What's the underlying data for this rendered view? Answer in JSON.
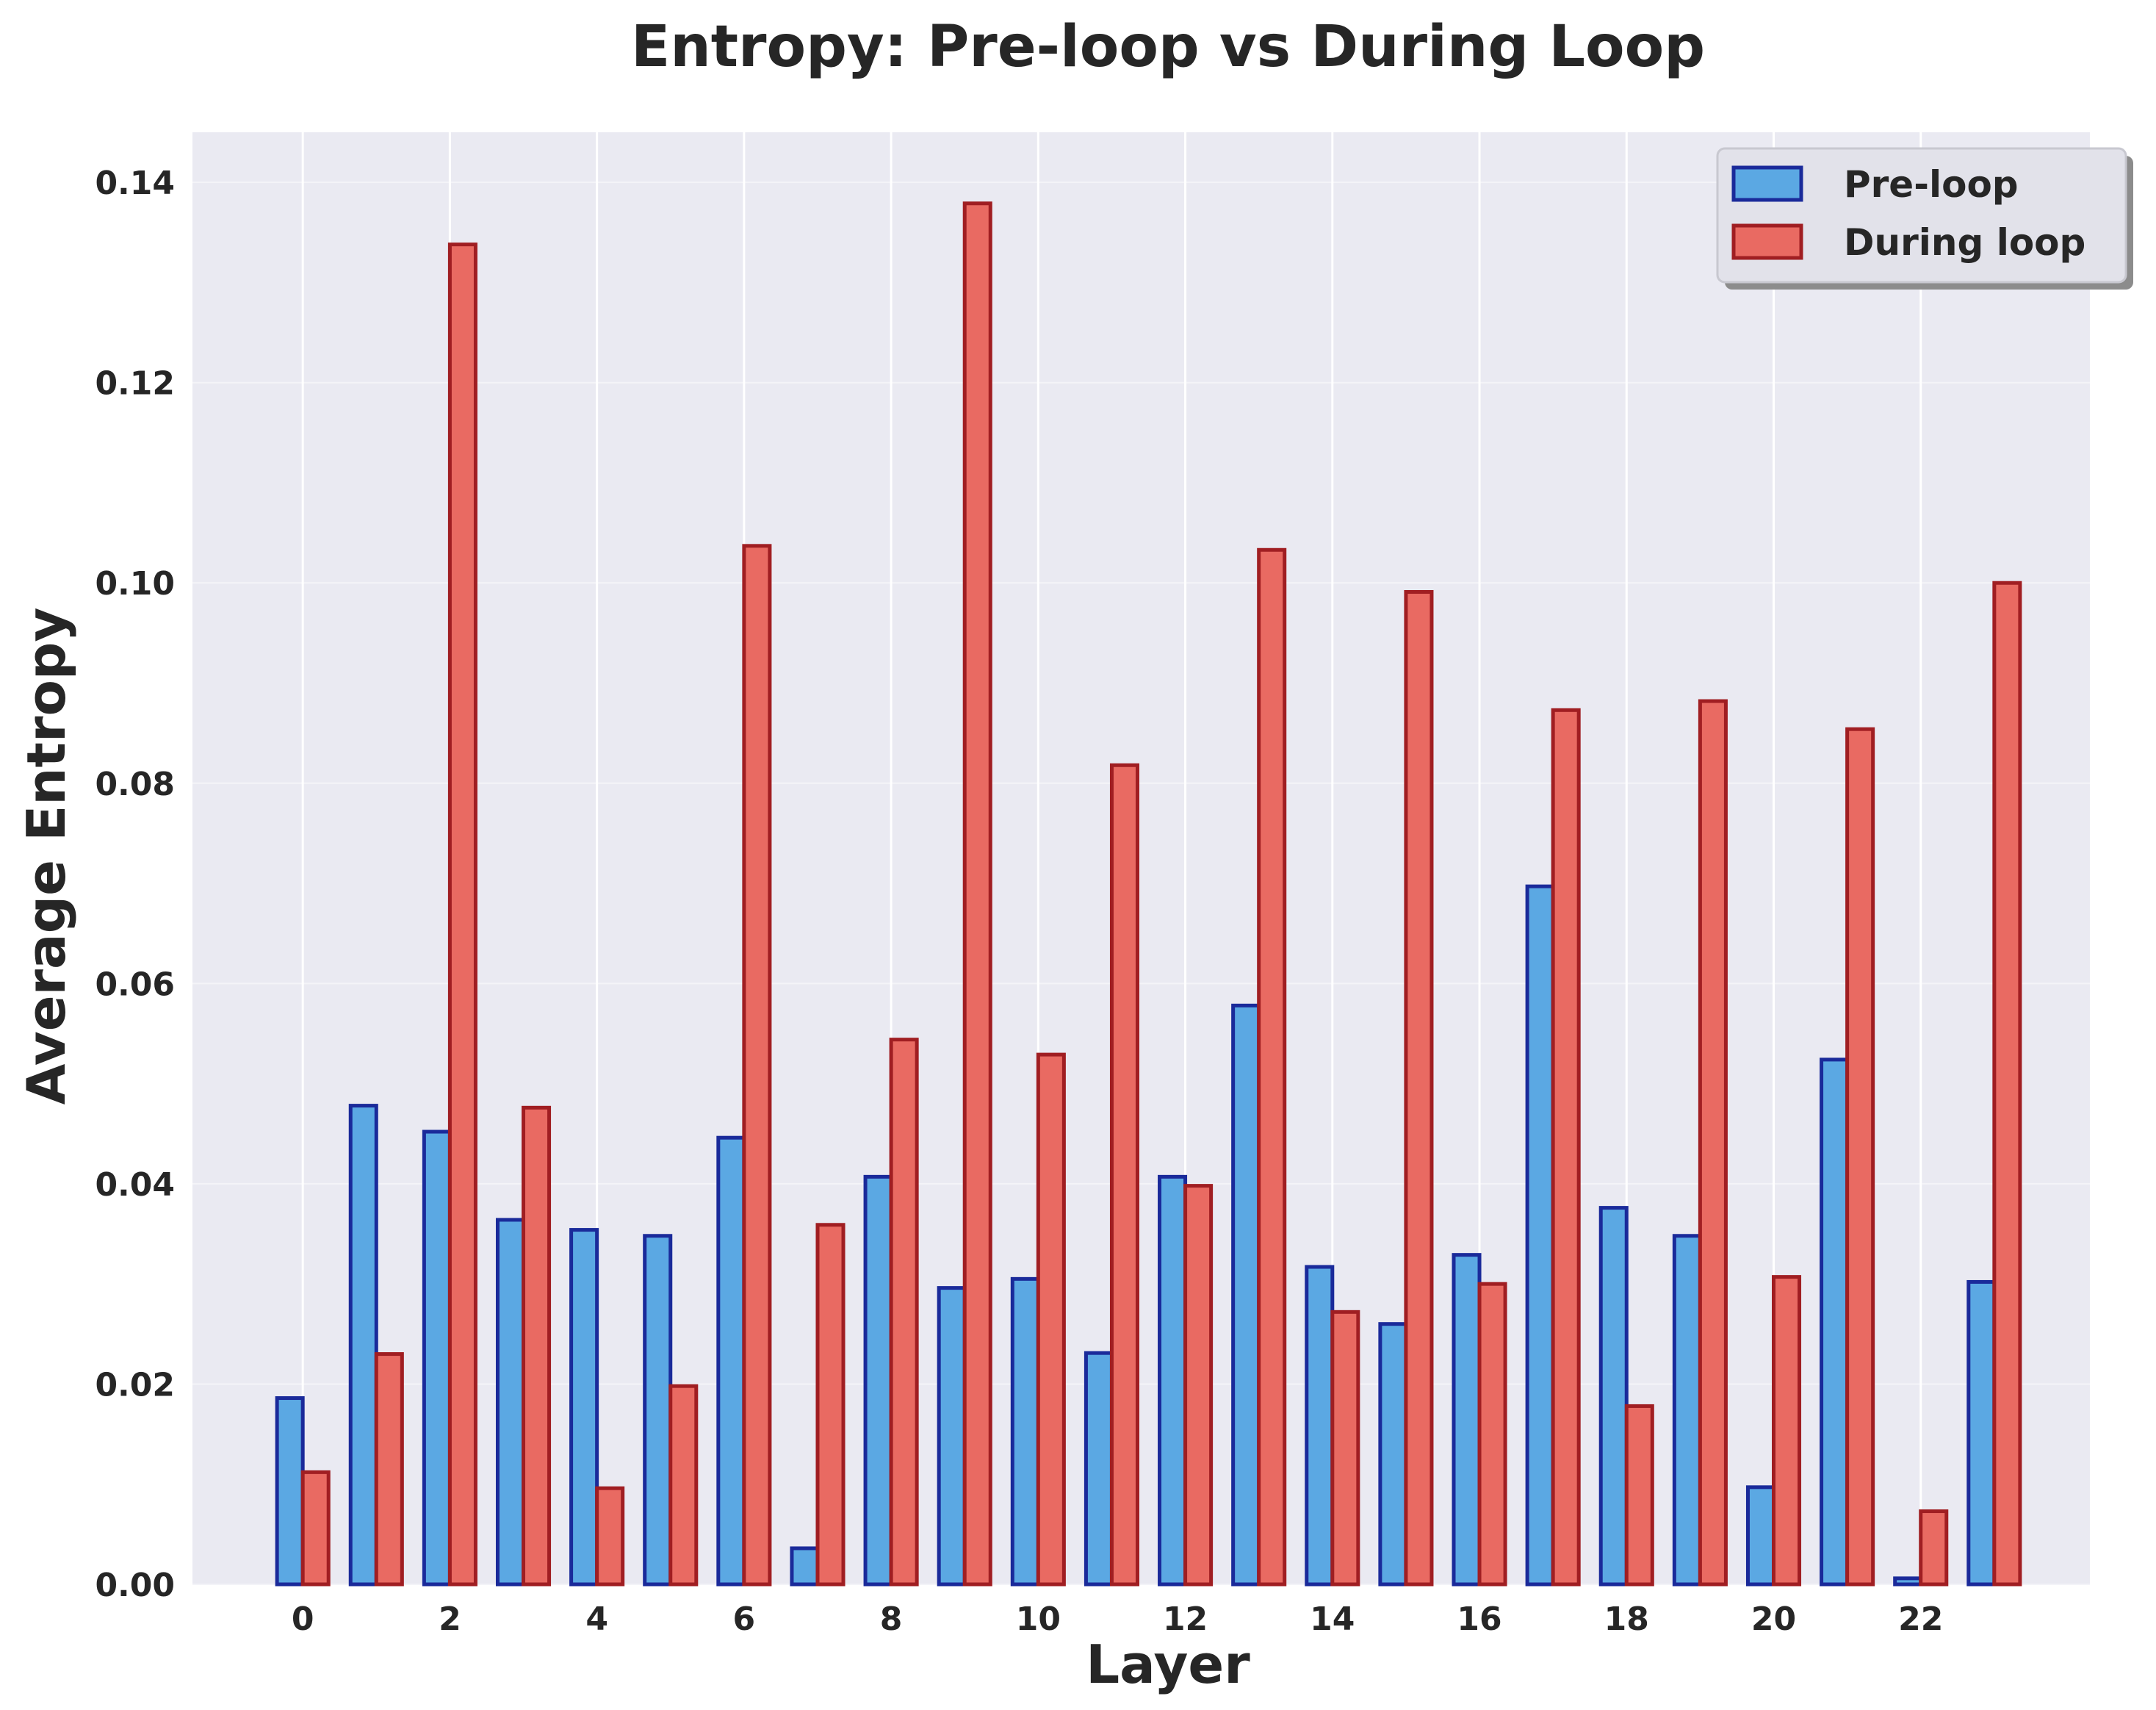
{
  "chart_data": {
    "type": "bar",
    "title": "Entropy: Pre-loop vs During Loop",
    "xlabel": "Layer",
    "ylabel": "Average Entropy",
    "ylim": [
      0,
      0.145
    ],
    "xlim": [
      -1.5,
      24.3
    ],
    "x": [
      0,
      1,
      2,
      3,
      4,
      5,
      6,
      7,
      8,
      9,
      10,
      11,
      12,
      13,
      14,
      15,
      16,
      17,
      18,
      19,
      20,
      21,
      22,
      23
    ],
    "xticks": [
      0,
      2,
      4,
      6,
      8,
      10,
      12,
      14,
      16,
      18,
      20,
      22
    ],
    "xtick_labels": [
      "0",
      "2",
      "4",
      "6",
      "8",
      "10",
      "12",
      "14",
      "16",
      "18",
      "20",
      "22"
    ],
    "yticks": [
      0,
      0.02,
      0.04,
      0.06,
      0.08,
      0.1,
      0.12,
      0.14
    ],
    "ytick_labels": [
      "0.00",
      "0.02",
      "0.04",
      "0.06",
      "0.08",
      "0.10",
      "0.12",
      "0.14"
    ],
    "grid": true,
    "legend_position": "top-right",
    "series": [
      {
        "name": "Pre-loop",
        "color": "#5BA8E3",
        "edge_color": "#1A2A9A",
        "values": [
          0.0186,
          0.0478,
          0.0452,
          0.0364,
          0.0354,
          0.0348,
          0.0446,
          0.0036,
          0.0407,
          0.0296,
          0.0305,
          0.0231,
          0.0407,
          0.0578,
          0.0317,
          0.026,
          0.0329,
          0.0697,
          0.0376,
          0.0348,
          0.0097,
          0.0524,
          0.0006,
          0.0302
        ]
      },
      {
        "name": "During loop",
        "color": "#E96A62",
        "edge_color": "#A01E22",
        "values": [
          0.0112,
          0.023,
          0.1338,
          0.0476,
          0.0096,
          0.0198,
          0.1037,
          0.0359,
          0.0544,
          0.1379,
          0.0529,
          0.0818,
          0.0398,
          0.1033,
          0.0272,
          0.0991,
          0.03,
          0.0873,
          0.0178,
          0.0882,
          0.0307,
          0.0854,
          0.0073,
          0.1
        ]
      }
    ]
  }
}
